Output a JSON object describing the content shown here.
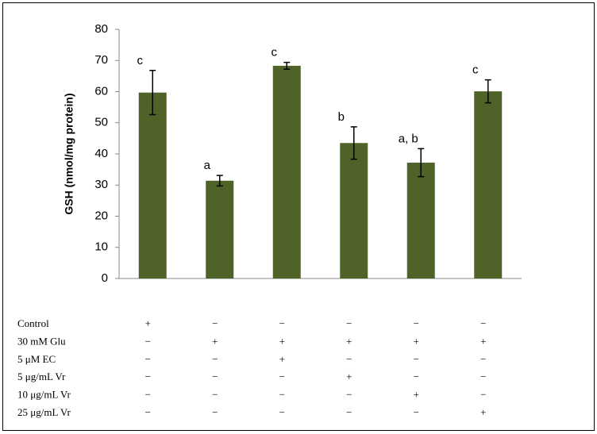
{
  "chart_data": {
    "type": "bar",
    "y_label": "GSH (nmol/mg protein)",
    "categories": [
      null,
      null,
      null,
      null,
      null,
      null
    ],
    "values": [
      59.7,
      31.4,
      68.3,
      43.5,
      37.2,
      60.1
    ],
    "errors": [
      7.1,
      1.7,
      1.1,
      5.2,
      4.5,
      3.7
    ],
    "letters": [
      "c",
      "a",
      "c",
      "b",
      "a, b",
      "c"
    ],
    "color": "#4f6228",
    "ylim": [
      0,
      80
    ],
    "yticks": [
      0,
      10,
      20,
      30,
      40,
      50,
      60,
      70,
      80
    ],
    "treatments": [
      {
        "label": "Control",
        "marks": [
          "+",
          "−",
          "−",
          "−",
          "−",
          "−"
        ]
      },
      {
        "label": "30 mM Glu",
        "marks": [
          "−",
          "+",
          "+",
          "+",
          "+",
          "+"
        ]
      },
      {
        "label": "5 μM EC",
        "marks": [
          "−",
          "−",
          "+",
          "−",
          "−",
          "−"
        ]
      },
      {
        "label": "5 μg/mL Vr",
        "marks": [
          "−",
          "−",
          "−",
          "+",
          "−",
          "−"
        ]
      },
      {
        "label": "10 μg/mL Vr",
        "marks": [
          "−",
          "−",
          "−",
          "−",
          "+",
          "−"
        ]
      },
      {
        "label": "25 μg/mL Vr",
        "marks": [
          "−",
          "−",
          "−",
          "−",
          "−",
          "+"
        ]
      }
    ]
  }
}
